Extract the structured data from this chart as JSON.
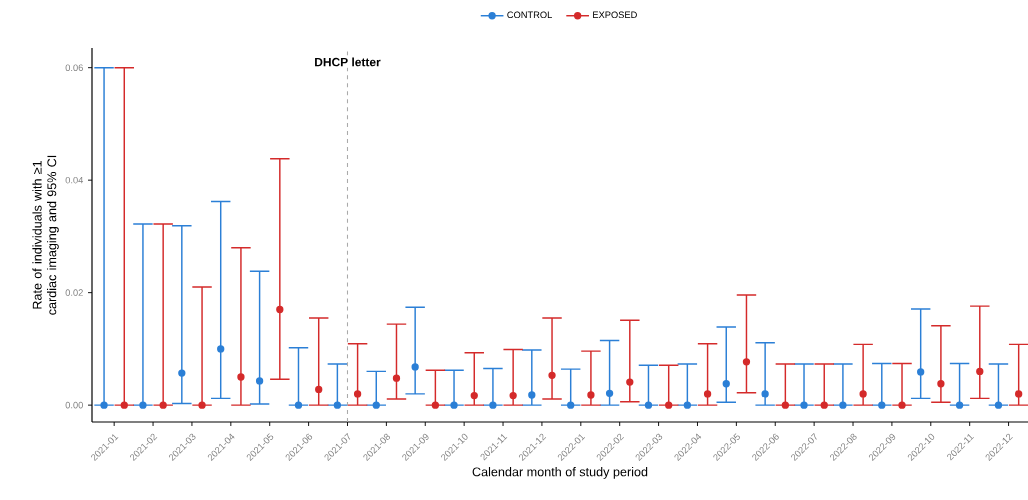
{
  "chart_data": {
    "type": "scatter",
    "xlabel": "Calendar month of study period",
    "ylabel": "Rate of individuals with ≥1 cardiac imaging and 95% CI",
    "categories": [
      "2021-01",
      "2021-02",
      "2021-03",
      "2021-04",
      "2021-05",
      "2021-06",
      "2021-07",
      "2021-08",
      "2021-09",
      "2021-10",
      "2021-11",
      "2021-12",
      "2022-01",
      "2022-02",
      "2022-03",
      "2022-04",
      "2022-05",
      "2022-06",
      "2022-07",
      "2022-08",
      "2022-09",
      "2022-10",
      "2022-11",
      "2022-12"
    ],
    "series": [
      {
        "name": "CONTROL",
        "color": "#2b7fd6",
        "values": [
          0,
          0,
          0.0057,
          0.01,
          0.0043,
          0,
          0,
          0,
          0.0068,
          0,
          0,
          0.0018,
          0,
          0.0021,
          0,
          0,
          0.0038,
          0.002,
          0,
          0,
          0,
          0.0059,
          0,
          0
        ],
        "errors": [
          [
            0,
            0.06
          ],
          [
            0,
            0.0322
          ],
          [
            0.0003,
            0.0319
          ],
          [
            0.0012,
            0.0362
          ],
          [
            0.0002,
            0.0238
          ],
          [
            0,
            0.0102
          ],
          [
            0,
            0.0073
          ],
          [
            0,
            0.006
          ],
          [
            0.002,
            0.0174
          ],
          [
            0,
            0.0062
          ],
          [
            0,
            0.0065
          ],
          [
            0,
            0.0098
          ],
          [
            0,
            0.0064
          ],
          [
            0,
            0.0115
          ],
          [
            0,
            0.0071
          ],
          [
            0,
            0.0073
          ],
          [
            0.0005,
            0.0139
          ],
          [
            0,
            0.0111
          ],
          [
            0,
            0.0073
          ],
          [
            0,
            0.0073
          ],
          [
            0,
            0.0074
          ],
          [
            0.0012,
            0.0171
          ],
          [
            0,
            0.0074
          ],
          [
            0,
            0.0073
          ]
        ]
      },
      {
        "name": "EXPOSED",
        "color": "#d42a2a",
        "values": [
          0,
          0,
          0,
          0.005,
          0.017,
          0.0028,
          0.002,
          0.0048,
          0,
          0.0017,
          0.0017,
          0.0053,
          0.0018,
          0.0041,
          0,
          0.002,
          0.0077,
          0,
          0,
          0.002,
          0,
          0.0038,
          0.006,
          0.002
        ],
        "errors": [
          [
            0,
            0.06
          ],
          [
            0,
            0.0322
          ],
          [
            0,
            0.021
          ],
          [
            0,
            0.028
          ],
          [
            0.0046,
            0.0438
          ],
          [
            0,
            0.0155
          ],
          [
            0,
            0.0109
          ],
          [
            0.0011,
            0.0144
          ],
          [
            0,
            0.0062
          ],
          [
            0,
            0.0093
          ],
          [
            0,
            0.0099
          ],
          [
            0.0011,
            0.0155
          ],
          [
            0,
            0.0096
          ],
          [
            0.0006,
            0.0151
          ],
          [
            0,
            0.0071
          ],
          [
            0,
            0.0109
          ],
          [
            0.0022,
            0.0196
          ],
          [
            0,
            0.0073
          ],
          [
            0,
            0.0073
          ],
          [
            0,
            0.0108
          ],
          [
            0,
            0.0074
          ],
          [
            0.0005,
            0.0141
          ],
          [
            0.0012,
            0.0176
          ],
          [
            0,
            0.0108
          ]
        ]
      }
    ],
    "ylim": [
      -0.003,
      0.0635
    ],
    "yticks": [
      {
        "value": 0,
        "label": "0.00"
      },
      {
        "value": 0.02,
        "label": "0.02"
      },
      {
        "value": 0.04,
        "label": "0.04"
      },
      {
        "value": 0.06,
        "label": "0.06"
      }
    ],
    "ref_lines": [
      {
        "axis": "x",
        "value": "2021-07",
        "label": "DHCP letter",
        "color": "#aaaaaa",
        "line_style": "dashed"
      }
    ],
    "grid": false,
    "legend": "top",
    "marker": "circle"
  }
}
